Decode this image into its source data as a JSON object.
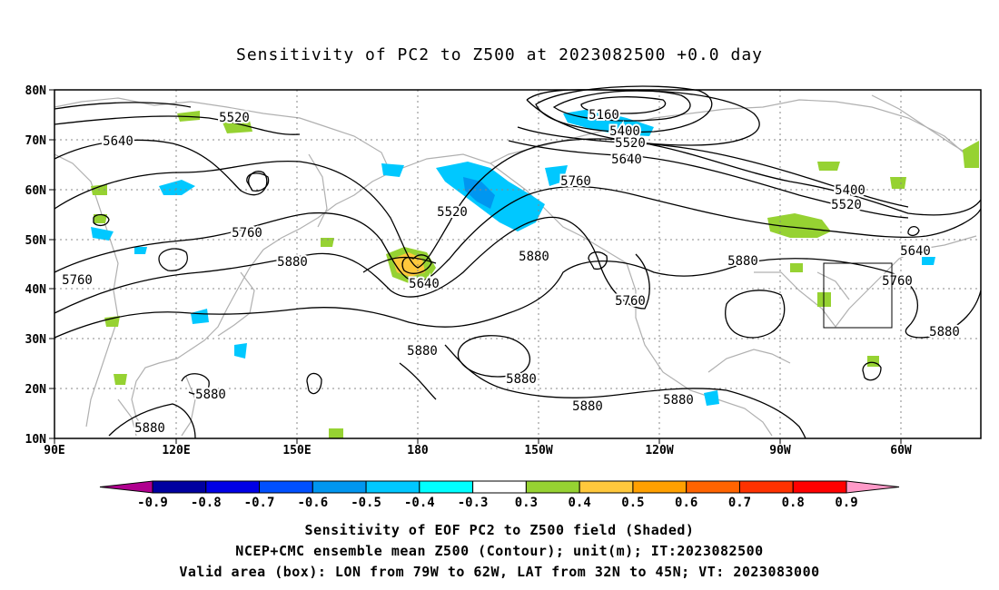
{
  "title": "Sensitivity of PC2 to Z500 at 2023082500 +0.0 day",
  "axes": {
    "lat_labels": [
      "80N",
      "70N",
      "60N",
      "50N",
      "40N",
      "30N",
      "20N",
      "10N"
    ],
    "lon_labels": [
      "90E",
      "120E",
      "150E",
      "180",
      "150W",
      "120W",
      "90W",
      "60W"
    ]
  },
  "contour_labels": [
    "5520",
    "5640",
    "5760",
    "5880",
    "5520",
    "5760",
    "5880",
    "5640",
    "5160",
    "5400",
    "5520",
    "5640",
    "5760",
    "5880",
    "5760",
    "5880",
    "5880",
    "5880",
    "5880",
    "5880",
    "5400",
    "5520",
    "5640",
    "5760",
    "5880",
    "5880"
  ],
  "valid_box": {
    "lon_west": -79,
    "lon_east": -62,
    "lat_south": 32,
    "lat_north": 45
  },
  "colorbar": {
    "labels": [
      "-0.9",
      "-0.8",
      "-0.7",
      "-0.6",
      "-0.5",
      "-0.4",
      "-0.3",
      "0.3",
      "0.4",
      "0.5",
      "0.6",
      "0.7",
      "0.8",
      "0.9"
    ],
    "colors": [
      "#b0008f",
      "#0000a0",
      "#0000e6",
      "#0050ff",
      "#0096f0",
      "#00c8ff",
      "#00ffff",
      "#ffffff",
      "#96d232",
      "#ffc83c",
      "#ffa000",
      "#ff6400",
      "#ff3200",
      "#ff0000",
      "#ff9ac8"
    ]
  },
  "captions": {
    "line1": "Sensitivity of EOF PC2 to Z500 field (Shaded)",
    "line2": "NCEP+CMC ensemble mean Z500 (Contour); unit(m); IT:2023082500",
    "line3": "Valid area (box): LON from 79W to 62W, LAT from 32N to 45N; VT: 2023083000"
  }
}
